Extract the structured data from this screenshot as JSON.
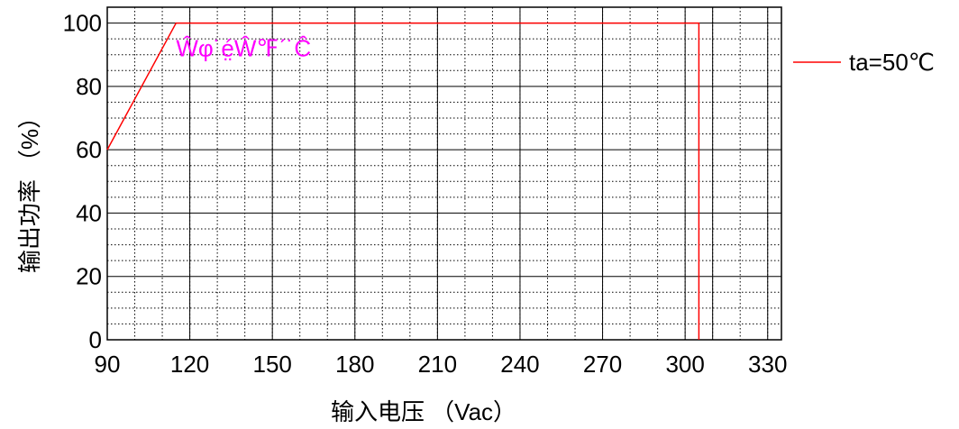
{
  "chart_data": {
    "type": "line",
    "title": "",
    "xlabel": "输入电压  （Vac）",
    "ylabel": "输出功率 （%）",
    "xlim": [
      90,
      335
    ],
    "ylim": [
      0,
      105
    ],
    "x_ticks": [
      90,
      120,
      150,
      180,
      210,
      240,
      270,
      300,
      330
    ],
    "y_ticks": [
      0,
      20,
      40,
      60,
      80,
      100
    ],
    "grid": "major-solid, minor-dotted",
    "legend_position": "right",
    "colors": {
      "series": "#ff0000",
      "annotation": "#ff00ff",
      "grid": "#000000"
    },
    "series": [
      {
        "name": "ta=50℃",
        "x": [
          90,
          115,
          305,
          305
        ],
        "y": [
          60,
          100,
          100,
          0
        ]
      }
    ],
    "annotations": [
      {
        "text": "Ŵφ˙é̤Ŵ℉ˊ˙Ĉ",
        "x": 115,
        "y": 92
      }
    ]
  }
}
